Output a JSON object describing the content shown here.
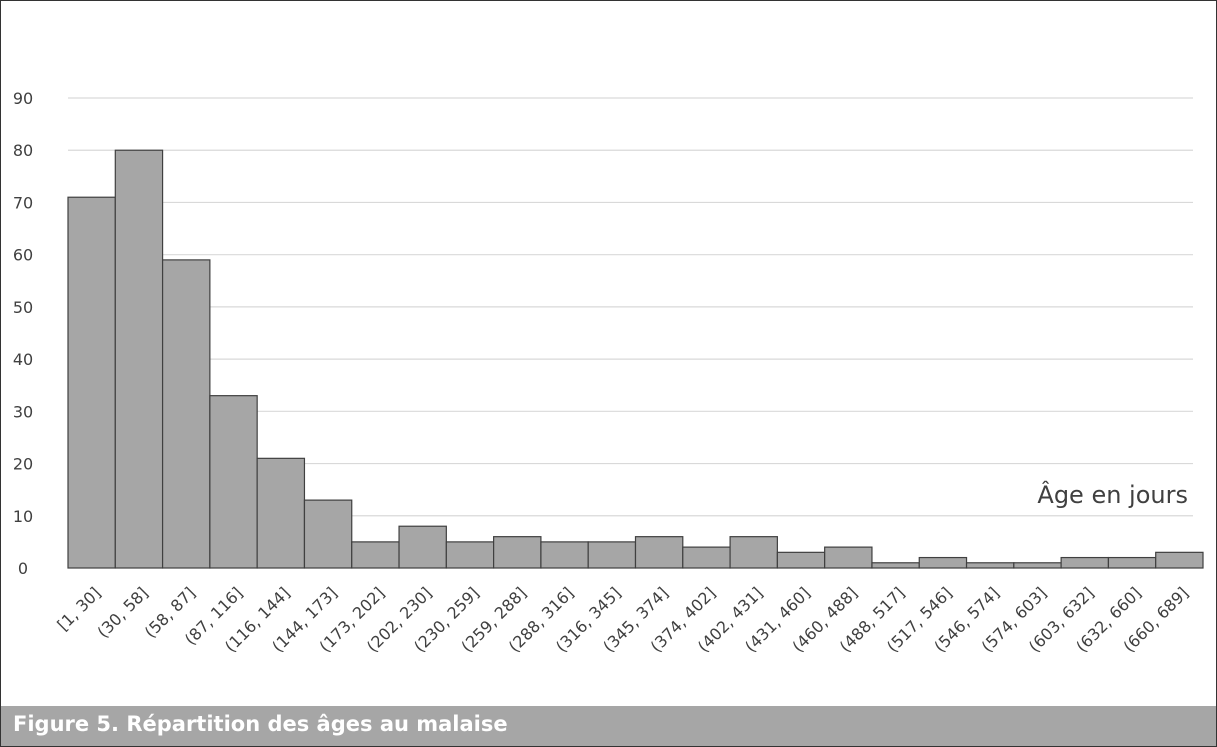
{
  "caption": {
    "text": "Figure 5. Répartition des âges au malaise"
  },
  "chart_data": {
    "type": "bar",
    "title": "",
    "xlabel": "Âge en jours",
    "ylabel": "",
    "ylim": [
      0,
      90
    ],
    "yticks": [
      0,
      10,
      20,
      30,
      40,
      50,
      60,
      70,
      80,
      90
    ],
    "grid": true,
    "bar_fill": "#a6a6a6",
    "bar_edge": "#404040",
    "grid_color": "#d9d9d9",
    "categories": [
      "[1, 30]",
      "(30, 58]",
      "(58, 87]",
      "(87, 116]",
      "(116, 144]",
      "(144, 173]",
      "(173, 202]",
      "(202, 230]",
      "(230, 259]",
      "(259, 288]",
      "(288, 316]",
      "(316, 345]",
      "(345, 374]",
      "(374, 402]",
      "(402, 431]",
      "(431, 460]",
      "(460, 488]",
      "(488, 517]",
      "(517, 546]",
      "(546, 574]",
      "(574, 603]",
      "(603, 632]",
      "(632, 660]",
      "(660, 689]"
    ],
    "values": [
      71,
      80,
      59,
      33,
      21,
      13,
      5,
      8,
      5,
      6,
      5,
      5,
      6,
      4,
      6,
      3,
      4,
      1,
      2,
      1,
      1,
      2,
      2,
      3
    ]
  }
}
